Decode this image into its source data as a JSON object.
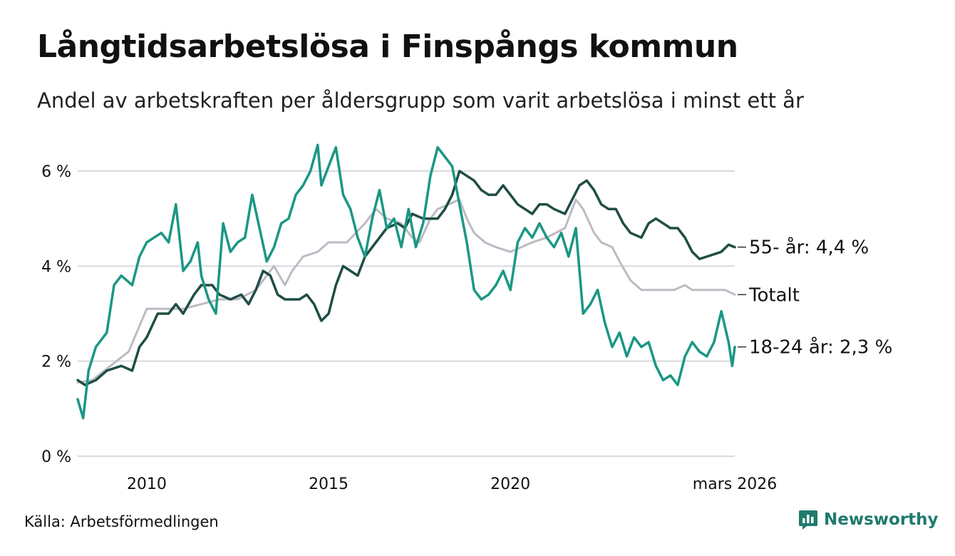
{
  "header": {
    "title": "Långtidsarbetslösa i Finspångs kommun",
    "subtitle": "Andel av arbetskraften per åldersgrupp som varit arbetslösa i minst ett år"
  },
  "footer": {
    "source": "Källa: Arbetsförmedlingen",
    "brand": "Newsworthy"
  },
  "colors": {
    "youth": "#1a9784",
    "older": "#1f4d45",
    "total": "#bdbac4",
    "grid": "#d9d9de",
    "text": "#111111"
  },
  "chart_data": {
    "type": "line",
    "title": "Långtidsarbetslösa i Finspångs kommun",
    "xlabel": "",
    "ylabel": "",
    "x_range": [
      2008.1,
      2026.17
    ],
    "ylim": [
      0,
      6.6
    ],
    "y_ticks": [
      {
        "value": 0,
        "label": "0 %"
      },
      {
        "value": 2,
        "label": "2 %"
      },
      {
        "value": 4,
        "label": "4 %"
      },
      {
        "value": 6,
        "label": "6 %"
      }
    ],
    "x_ticks": [
      {
        "value": 2010,
        "label": "2010"
      },
      {
        "value": 2015,
        "label": "2015"
      },
      {
        "value": 2020,
        "label": "2020"
      },
      {
        "value": 2026.17,
        "label": "mars 2026"
      }
    ],
    "grid": true,
    "series": [
      {
        "key": "total",
        "name": "Totalt",
        "end_label": "Totalt",
        "color": "#bdbac4",
        "points": [
          [
            2008.1,
            1.55
          ],
          [
            2008.5,
            1.6
          ],
          [
            2009,
            1.9
          ],
          [
            2009.5,
            2.2
          ],
          [
            2010,
            3.1
          ],
          [
            2010.5,
            3.1
          ],
          [
            2011,
            3.1
          ],
          [
            2011.5,
            3.2
          ],
          [
            2012,
            3.3
          ],
          [
            2012.5,
            3.3
          ],
          [
            2013,
            3.5
          ],
          [
            2013.5,
            4.0
          ],
          [
            2013.8,
            3.6
          ],
          [
            2014,
            3.9
          ],
          [
            2014.3,
            4.2
          ],
          [
            2014.7,
            4.3
          ],
          [
            2015,
            4.5
          ],
          [
            2015.5,
            4.5
          ],
          [
            2016,
            4.9
          ],
          [
            2016.3,
            5.2
          ],
          [
            2016.6,
            5.0
          ],
          [
            2017,
            4.9
          ],
          [
            2017.3,
            4.6
          ],
          [
            2017.5,
            4.5
          ],
          [
            2017.8,
            5.0
          ],
          [
            2018,
            5.2
          ],
          [
            2018.3,
            5.3
          ],
          [
            2018.6,
            5.4
          ],
          [
            2018.8,
            5.0
          ],
          [
            2019,
            4.7
          ],
          [
            2019.3,
            4.5
          ],
          [
            2019.6,
            4.4
          ],
          [
            2020,
            4.3
          ],
          [
            2020.3,
            4.4
          ],
          [
            2020.6,
            4.5
          ],
          [
            2021,
            4.6
          ],
          [
            2021.5,
            4.8
          ],
          [
            2021.8,
            5.4
          ],
          [
            2022,
            5.2
          ],
          [
            2022.3,
            4.7
          ],
          [
            2022.5,
            4.5
          ],
          [
            2022.8,
            4.4
          ],
          [
            2023,
            4.1
          ],
          [
            2023.3,
            3.7
          ],
          [
            2023.6,
            3.5
          ],
          [
            2024,
            3.5
          ],
          [
            2024.3,
            3.5
          ],
          [
            2024.5,
            3.5
          ],
          [
            2024.8,
            3.6
          ],
          [
            2025,
            3.5
          ],
          [
            2025.3,
            3.5
          ],
          [
            2025.6,
            3.5
          ],
          [
            2025.9,
            3.5
          ],
          [
            2026.17,
            3.4
          ]
        ]
      },
      {
        "key": "older",
        "name": "55- år",
        "end_label": "55- år: 4,4 %",
        "color": "#1f4d45",
        "points": [
          [
            2008.1,
            1.6
          ],
          [
            2008.3,
            1.5
          ],
          [
            2008.6,
            1.6
          ],
          [
            2008.9,
            1.8
          ],
          [
            2009.3,
            1.9
          ],
          [
            2009.6,
            1.8
          ],
          [
            2009.8,
            2.3
          ],
          [
            2010,
            2.5
          ],
          [
            2010.3,
            3.0
          ],
          [
            2010.6,
            3.0
          ],
          [
            2010.8,
            3.2
          ],
          [
            2011,
            3.0
          ],
          [
            2011.3,
            3.4
          ],
          [
            2011.5,
            3.6
          ],
          [
            2011.8,
            3.6
          ],
          [
            2012,
            3.4
          ],
          [
            2012.3,
            3.3
          ],
          [
            2012.6,
            3.4
          ],
          [
            2012.8,
            3.2
          ],
          [
            2013,
            3.5
          ],
          [
            2013.2,
            3.9
          ],
          [
            2013.4,
            3.8
          ],
          [
            2013.6,
            3.4
          ],
          [
            2013.8,
            3.3
          ],
          [
            2014,
            3.3
          ],
          [
            2014.2,
            3.3
          ],
          [
            2014.4,
            3.4
          ],
          [
            2014.6,
            3.2
          ],
          [
            2014.8,
            2.85
          ],
          [
            2015,
            3.0
          ],
          [
            2015.2,
            3.6
          ],
          [
            2015.4,
            4.0
          ],
          [
            2015.6,
            3.9
          ],
          [
            2015.8,
            3.8
          ],
          [
            2016,
            4.2
          ],
          [
            2016.3,
            4.5
          ],
          [
            2016.6,
            4.8
          ],
          [
            2016.9,
            4.9
          ],
          [
            2017.1,
            4.8
          ],
          [
            2017.3,
            5.1
          ],
          [
            2017.6,
            5.0
          ],
          [
            2017.8,
            5.0
          ],
          [
            2018,
            5.0
          ],
          [
            2018.2,
            5.2
          ],
          [
            2018.4,
            5.5
          ],
          [
            2018.6,
            6.0
          ],
          [
            2018.8,
            5.9
          ],
          [
            2019,
            5.8
          ],
          [
            2019.2,
            5.6
          ],
          [
            2019.4,
            5.5
          ],
          [
            2019.6,
            5.5
          ],
          [
            2019.8,
            5.7
          ],
          [
            2020,
            5.5
          ],
          [
            2020.2,
            5.3
          ],
          [
            2020.4,
            5.2
          ],
          [
            2020.6,
            5.1
          ],
          [
            2020.8,
            5.3
          ],
          [
            2021,
            5.3
          ],
          [
            2021.2,
            5.2
          ],
          [
            2021.5,
            5.1
          ],
          [
            2021.7,
            5.4
          ],
          [
            2021.9,
            5.7
          ],
          [
            2022.1,
            5.8
          ],
          [
            2022.3,
            5.6
          ],
          [
            2022.5,
            5.3
          ],
          [
            2022.7,
            5.2
          ],
          [
            2022.9,
            5.2
          ],
          [
            2023.1,
            4.9
          ],
          [
            2023.3,
            4.7
          ],
          [
            2023.6,
            4.6
          ],
          [
            2023.8,
            4.9
          ],
          [
            2024,
            5.0
          ],
          [
            2024.2,
            4.9
          ],
          [
            2024.4,
            4.8
          ],
          [
            2024.6,
            4.8
          ],
          [
            2024.8,
            4.6
          ],
          [
            2025,
            4.3
          ],
          [
            2025.2,
            4.15
          ],
          [
            2025.4,
            4.2
          ],
          [
            2025.6,
            4.25
          ],
          [
            2025.8,
            4.3
          ],
          [
            2026,
            4.45
          ],
          [
            2026.17,
            4.4
          ]
        ]
      },
      {
        "key": "youth",
        "name": "18-24 år",
        "end_label": "18-24 år: 2,3 %",
        "color": "#1a9784",
        "points": [
          [
            2008.1,
            1.2
          ],
          [
            2008.25,
            0.8
          ],
          [
            2008.4,
            1.8
          ],
          [
            2008.6,
            2.3
          ],
          [
            2008.9,
            2.6
          ],
          [
            2009.1,
            3.6
          ],
          [
            2009.3,
            3.8
          ],
          [
            2009.6,
            3.6
          ],
          [
            2009.8,
            4.2
          ],
          [
            2010,
            4.5
          ],
          [
            2010.2,
            4.6
          ],
          [
            2010.4,
            4.7
          ],
          [
            2010.6,
            4.5
          ],
          [
            2010.8,
            5.3
          ],
          [
            2011,
            3.9
          ],
          [
            2011.2,
            4.1
          ],
          [
            2011.4,
            4.5
          ],
          [
            2011.5,
            3.8
          ],
          [
            2011.7,
            3.3
          ],
          [
            2011.9,
            3.0
          ],
          [
            2012.1,
            4.9
          ],
          [
            2012.3,
            4.3
          ],
          [
            2012.5,
            4.5
          ],
          [
            2012.7,
            4.6
          ],
          [
            2012.9,
            5.5
          ],
          [
            2013.1,
            4.8
          ],
          [
            2013.3,
            4.1
          ],
          [
            2013.5,
            4.4
          ],
          [
            2013.7,
            4.9
          ],
          [
            2013.9,
            5.0
          ],
          [
            2014.1,
            5.5
          ],
          [
            2014.3,
            5.7
          ],
          [
            2014.5,
            6.0
          ],
          [
            2014.7,
            6.55
          ],
          [
            2014.8,
            5.7
          ],
          [
            2015,
            6.1
          ],
          [
            2015.2,
            6.5
          ],
          [
            2015.4,
            5.5
          ],
          [
            2015.6,
            5.2
          ],
          [
            2015.8,
            4.6
          ],
          [
            2016,
            4.2
          ],
          [
            2016.2,
            5.0
          ],
          [
            2016.4,
            5.6
          ],
          [
            2016.6,
            4.8
          ],
          [
            2016.8,
            5.0
          ],
          [
            2017,
            4.4
          ],
          [
            2017.2,
            5.2
          ],
          [
            2017.4,
            4.4
          ],
          [
            2017.6,
            4.9
          ],
          [
            2017.8,
            5.9
          ],
          [
            2018,
            6.5
          ],
          [
            2018.2,
            6.3
          ],
          [
            2018.4,
            6.1
          ],
          [
            2018.6,
            5.3
          ],
          [
            2018.8,
            4.5
          ],
          [
            2019,
            3.5
          ],
          [
            2019.2,
            3.3
          ],
          [
            2019.4,
            3.4
          ],
          [
            2019.6,
            3.6
          ],
          [
            2019.8,
            3.9
          ],
          [
            2020,
            3.5
          ],
          [
            2020.2,
            4.5
          ],
          [
            2020.4,
            4.8
          ],
          [
            2020.6,
            4.6
          ],
          [
            2020.8,
            4.9
          ],
          [
            2021,
            4.6
          ],
          [
            2021.2,
            4.4
          ],
          [
            2021.4,
            4.7
          ],
          [
            2021.6,
            4.2
          ],
          [
            2021.8,
            4.8
          ],
          [
            2022,
            3.0
          ],
          [
            2022.2,
            3.2
          ],
          [
            2022.4,
            3.5
          ],
          [
            2022.6,
            2.8
          ],
          [
            2022.8,
            2.3
          ],
          [
            2023,
            2.6
          ],
          [
            2023.2,
            2.1
          ],
          [
            2023.4,
            2.5
          ],
          [
            2023.6,
            2.3
          ],
          [
            2023.8,
            2.4
          ],
          [
            2024,
            1.9
          ],
          [
            2024.2,
            1.6
          ],
          [
            2024.4,
            1.7
          ],
          [
            2024.6,
            1.5
          ],
          [
            2024.8,
            2.1
          ],
          [
            2025,
            2.4
          ],
          [
            2025.2,
            2.2
          ],
          [
            2025.4,
            2.1
          ],
          [
            2025.6,
            2.4
          ],
          [
            2025.8,
            3.05
          ],
          [
            2026,
            2.4
          ],
          [
            2026.1,
            1.9
          ],
          [
            2026.17,
            2.3
          ]
        ]
      }
    ]
  }
}
